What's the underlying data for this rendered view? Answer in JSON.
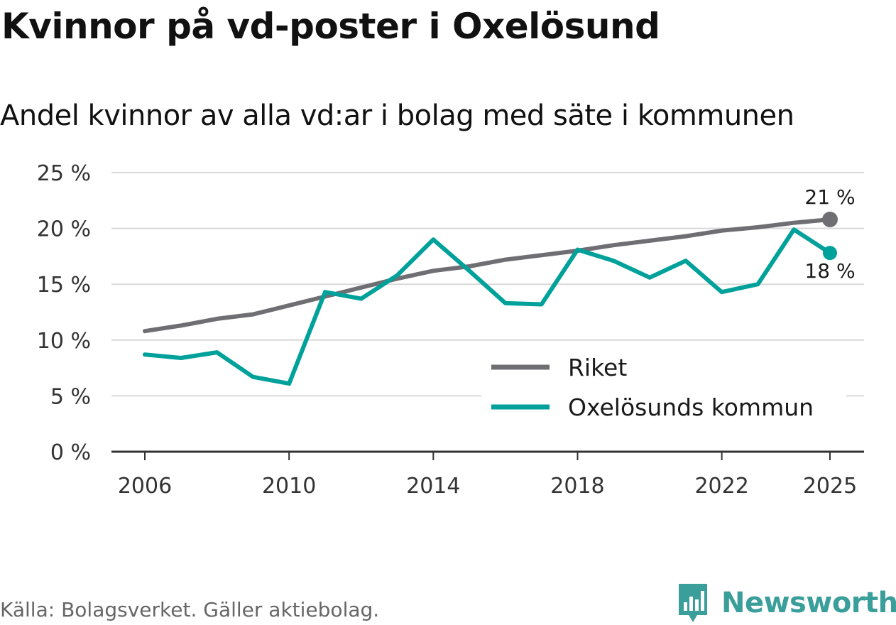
{
  "header": {
    "title": "Kvinnor på vd-poster i Oxelösund",
    "subtitle": "Andel kvinnor av alla vd:ar i bolag med säte i kommunen"
  },
  "chart_data": {
    "type": "line",
    "title": "Kvinnor på vd-poster i Oxelösund",
    "subtitle": "Andel kvinnor av alla vd:ar i bolag med säte i kommunen",
    "xlabel": "",
    "ylabel": "",
    "x": [
      2006,
      2007,
      2008,
      2009,
      2010,
      2011,
      2012,
      2013,
      2014,
      2015,
      2016,
      2017,
      2018,
      2019,
      2020,
      2021,
      2022,
      2023,
      2024,
      2025
    ],
    "xticks": [
      2006,
      2010,
      2014,
      2018,
      2022,
      2025
    ],
    "xtick_labels": [
      "2006",
      "2010",
      "2014",
      "2018",
      "2022",
      "2025"
    ],
    "ylim": [
      0,
      25
    ],
    "yticks": [
      0,
      5,
      10,
      15,
      20,
      25
    ],
    "ytick_labels": [
      "0 %",
      "5 %",
      "10 %",
      "15 %",
      "20 %",
      "25 %"
    ],
    "grid": true,
    "legend_position": "bottom-right",
    "series": [
      {
        "name": "Riket",
        "color": "#6f6e73",
        "values": [
          10.8,
          11.3,
          11.9,
          12.3,
          13.1,
          13.9,
          14.7,
          15.5,
          16.2,
          16.6,
          17.2,
          17.6,
          18.0,
          18.5,
          18.9,
          19.3,
          19.8,
          20.1,
          20.5,
          20.8
        ],
        "end_label": "21 %"
      },
      {
        "name": "Oxelösunds kommun",
        "color": "#00a19a",
        "values": [
          8.7,
          8.4,
          8.9,
          6.7,
          6.1,
          14.3,
          13.7,
          15.8,
          19.0,
          16.2,
          13.3,
          13.2,
          18.1,
          17.1,
          15.6,
          17.1,
          14.3,
          15.0,
          19.9,
          17.8
        ],
        "end_label": "18 %"
      }
    ]
  },
  "footer": {
    "source": "Källa: Bolagsverket. Gäller aktiebolag.",
    "brand": "Newsworthy",
    "brand_color": "#3a9e9a"
  }
}
